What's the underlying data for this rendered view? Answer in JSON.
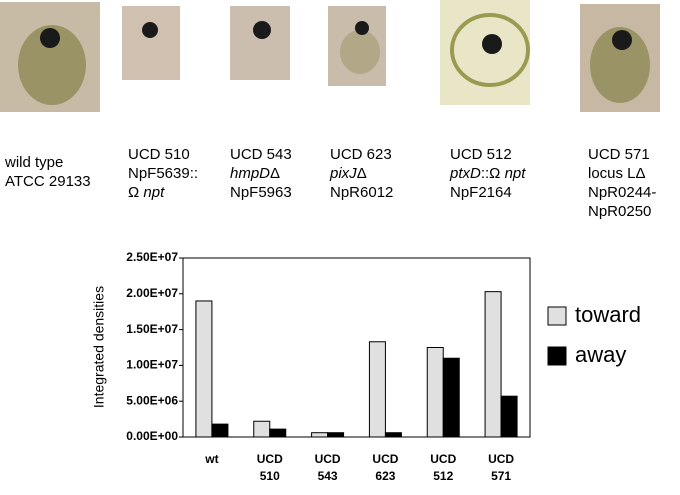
{
  "strains": [
    {
      "lines": [
        "wild type",
        "ATCC 29133"
      ]
    },
    {
      "lines": [
        "UCD 510",
        "NpF5639::",
        [
          "Ω ",
          {
            "text": "npt",
            "italic": true
          }
        ]
      ]
    },
    {
      "lines": [
        "UCD 543",
        [
          {
            "text": "hmpD",
            "italic": true
          },
          "Δ"
        ],
        "NpF5963"
      ]
    },
    {
      "lines": [
        "UCD 623",
        [
          {
            "text": "pixJ",
            "italic": true
          },
          "Δ"
        ],
        "NpR6012"
      ]
    },
    {
      "lines": [
        "UCD 512",
        [
          {
            "text": "ptxD",
            "italic": true
          },
          "::Ω ",
          {
            "text": "npt",
            "italic": true
          }
        ],
        "NpF2164"
      ]
    },
    {
      "lines": [
        "UCD 571",
        "locus LΔ",
        "NpR0244-",
        "NpR0250"
      ]
    }
  ],
  "chart_data": {
    "type": "bar",
    "y_label": "Integrated densities",
    "categories": [
      "wt",
      "UCD 510",
      "UCD 543",
      "UCD 623",
      "UCD 512",
      "UCD 571"
    ],
    "series": [
      {
        "name": "toward",
        "color": "#e0e0e0",
        "values": [
          19000000,
          2200000,
          600000,
          13300000,
          12500000,
          20300000
        ]
      },
      {
        "name": "away",
        "color": "#000000",
        "values": [
          1800000,
          1100000,
          600000,
          600000,
          11000000,
          5700000
        ]
      }
    ],
    "ylim": [
      0,
      25000000
    ],
    "yticks": [
      {
        "value": 0,
        "label": "0.00E+00"
      },
      {
        "value": 5000000,
        "label": "5.00E+06"
      },
      {
        "value": 10000000,
        "label": "1.00E+07"
      },
      {
        "value": 15000000,
        "label": "1.50E+07"
      },
      {
        "value": 20000000,
        "label": "2.00E+07"
      },
      {
        "value": 25000000,
        "label": "2.50E+07"
      }
    ],
    "legend": "right"
  }
}
